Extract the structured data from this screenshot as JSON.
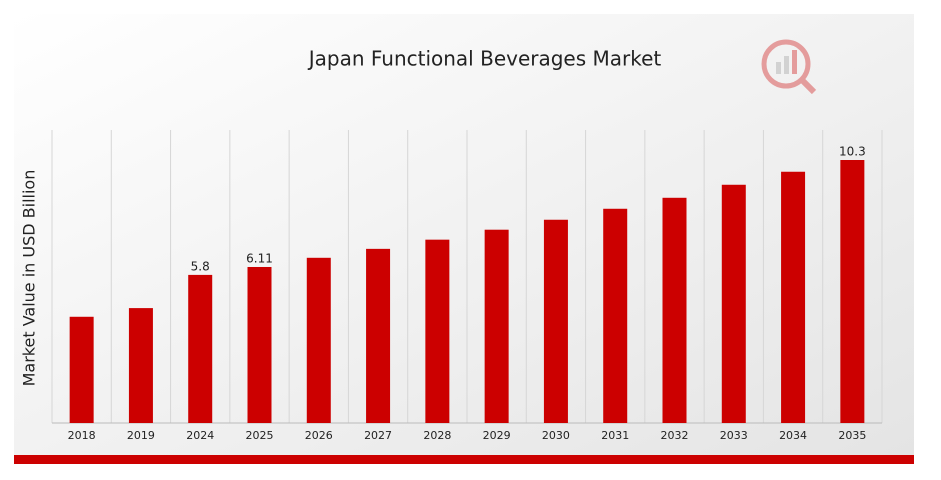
{
  "chart_data": {
    "type": "bar",
    "title": "Japan Functional Beverages Market",
    "y_label": "Market Value in USD Billion",
    "categories": [
      "2018",
      "2019",
      "2024",
      "2025",
      "2026",
      "2027",
      "2028",
      "2029",
      "2030",
      "2031",
      "2032",
      "2033",
      "2034",
      "2035"
    ],
    "values": [
      4.16,
      4.5,
      5.8,
      6.11,
      6.47,
      6.82,
      7.18,
      7.57,
      7.96,
      8.39,
      8.82,
      9.33,
      9.84,
      10.3
    ],
    "value_labels": [
      null,
      null,
      "5.8",
      "6.11",
      null,
      null,
      null,
      null,
      null,
      null,
      null,
      null,
      null,
      "10.3"
    ],
    "color": "#cc0000",
    "grid": true
  }
}
